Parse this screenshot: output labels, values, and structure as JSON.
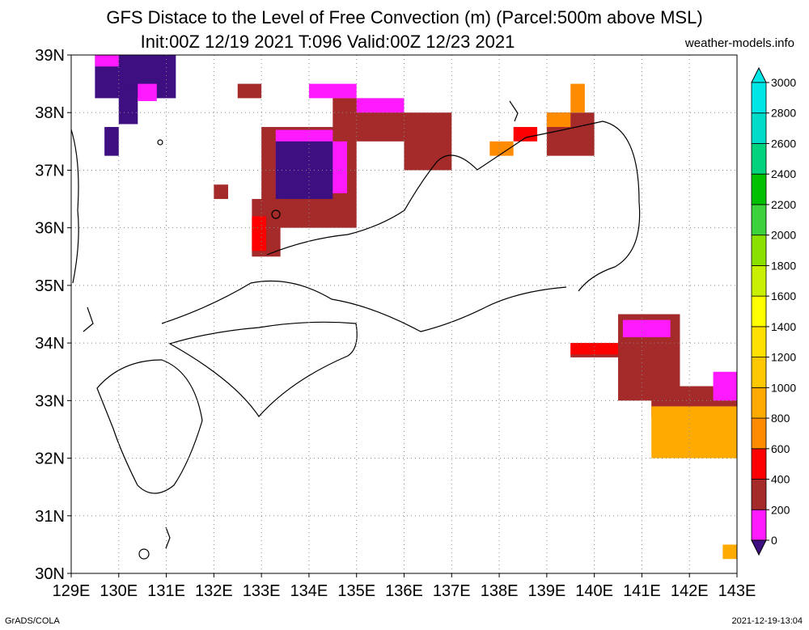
{
  "title_line1": "GFS Distace to the Level of Free Convection (m) (Parcel:500m above MSL)",
  "title_line2": "Init:00Z 12/19 2021 T:096 Valid:00Z 12/23 2021",
  "site": "weather-models.info",
  "footer_left": "GrADS/COLA",
  "footer_right": "2021-12-19-13:04",
  "map": {
    "lon_range": [
      129,
      143
    ],
    "lat_range": [
      30,
      39
    ],
    "lon_labels": [
      "129E",
      "130E",
      "131E",
      "132E",
      "133E",
      "134E",
      "135E",
      "136E",
      "137E",
      "138E",
      "139E",
      "140E",
      "141E",
      "142E",
      "143E"
    ],
    "lat_labels": [
      "30N",
      "31N",
      "32N",
      "33N",
      "34N",
      "35N",
      "36N",
      "37N",
      "38N",
      "39N"
    ],
    "grid": "dotted"
  },
  "colorbar": {
    "labels": [
      "0",
      "200",
      "400",
      "600",
      "800",
      "1000",
      "1200",
      "1400",
      "1600",
      "1800",
      "2000",
      "2200",
      "2400",
      "2600",
      "2800",
      "3000"
    ],
    "colors": [
      "#3d0f80",
      "#ff1aff",
      "#a52a2a",
      "#ff0000",
      "#ff8c00",
      "#ffaa00",
      "#ffc800",
      "#ffe000",
      "#ffff00",
      "#c8f000",
      "#8ce000",
      "#3cd23c",
      "#00c000",
      "#00d27d",
      "#00dcc8",
      "#00e6e6"
    ]
  },
  "cells": [
    {
      "lon": [
        129.5,
        131.2
      ],
      "lat": [
        38.25,
        39.0
      ],
      "v": "#3d0f80"
    },
    {
      "lon": [
        130.0,
        130.4
      ],
      "lat": [
        37.8,
        38.4
      ],
      "v": "#3d0f80"
    },
    {
      "lon": [
        129.5,
        130.0
      ],
      "lat": [
        38.8,
        39.0
      ],
      "v": "#ff1aff"
    },
    {
      "lon": [
        130.4,
        130.8
      ],
      "lat": [
        38.2,
        38.5
      ],
      "v": "#ff1aff"
    },
    {
      "lon": [
        129.7,
        130.0
      ],
      "lat": [
        37.25,
        37.75
      ],
      "v": "#3d0f80"
    },
    {
      "lon": [
        132.5,
        133.0
      ],
      "lat": [
        38.25,
        38.5
      ],
      "v": "#a52a2a"
    },
    {
      "lon": [
        133.0,
        135.0
      ],
      "lat": [
        36.0,
        37.75
      ],
      "v": "#a52a2a"
    },
    {
      "lon": [
        133.3,
        134.8
      ],
      "lat": [
        36.6,
        37.7
      ],
      "v": "#ff1aff"
    },
    {
      "lon": [
        133.3,
        134.5
      ],
      "lat": [
        36.5,
        37.5
      ],
      "v": "#3d0f80"
    },
    {
      "lon": [
        134.0,
        135.0
      ],
      "lat": [
        38.25,
        38.5
      ],
      "v": "#ff1aff"
    },
    {
      "lon": [
        134.5,
        136.0
      ],
      "lat": [
        37.5,
        38.25
      ],
      "v": "#a52a2a"
    },
    {
      "lon": [
        135.0,
        136.0
      ],
      "lat": [
        38.0,
        38.25
      ],
      "v": "#ff1aff"
    },
    {
      "lon": [
        136.0,
        137.0
      ],
      "lat": [
        37.0,
        38.0
      ],
      "v": "#a52a2a"
    },
    {
      "lon": [
        132.8,
        133.4
      ],
      "lat": [
        35.5,
        36.5
      ],
      "v": "#a52a2a"
    },
    {
      "lon": [
        132.8,
        133.1
      ],
      "lat": [
        35.6,
        36.2
      ],
      "v": "#ff0000"
    },
    {
      "lon": [
        132.0,
        132.3
      ],
      "lat": [
        36.5,
        36.75
      ],
      "v": "#a52a2a"
    },
    {
      "lon": [
        137.8,
        138.3
      ],
      "lat": [
        37.25,
        37.5
      ],
      "v": "#ff8c00"
    },
    {
      "lon": [
        138.3,
        138.8
      ],
      "lat": [
        37.5,
        37.75
      ],
      "v": "#ff0000"
    },
    {
      "lon": [
        139.0,
        140.0
      ],
      "lat": [
        37.25,
        38.0
      ],
      "v": "#a52a2a"
    },
    {
      "lon": [
        139.5,
        139.8
      ],
      "lat": [
        38.0,
        38.5
      ],
      "v": "#ff8c00"
    },
    {
      "lon": [
        139.0,
        139.5
      ],
      "lat": [
        37.75,
        38.0
      ],
      "v": "#ff8c00"
    },
    {
      "lon": [
        139.5,
        141.0
      ],
      "lat": [
        33.75,
        34.0
      ],
      "v": "#a52a2a"
    },
    {
      "lon": [
        139.5,
        140.5
      ],
      "lat": [
        33.8,
        34.0
      ],
      "v": "#ff0000"
    },
    {
      "lon": [
        140.5,
        141.8
      ],
      "lat": [
        33.0,
        34.5
      ],
      "v": "#a52a2a"
    },
    {
      "lon": [
        140.6,
        141.6
      ],
      "lat": [
        34.1,
        34.4
      ],
      "v": "#ff1aff"
    },
    {
      "lon": [
        141.2,
        143.0
      ],
      "lat": [
        32.7,
        33.25
      ],
      "v": "#a52a2a"
    },
    {
      "lon": [
        141.2,
        143.0
      ],
      "lat": [
        32.0,
        32.9
      ],
      "v": "#ffaa00"
    },
    {
      "lon": [
        142.5,
        143.0
      ],
      "lat": [
        33.0,
        33.5
      ],
      "v": "#ff1aff"
    },
    {
      "lon": [
        142.7,
        143.0
      ],
      "lat": [
        30.25,
        30.5
      ],
      "v": "#ffaa00"
    }
  ]
}
